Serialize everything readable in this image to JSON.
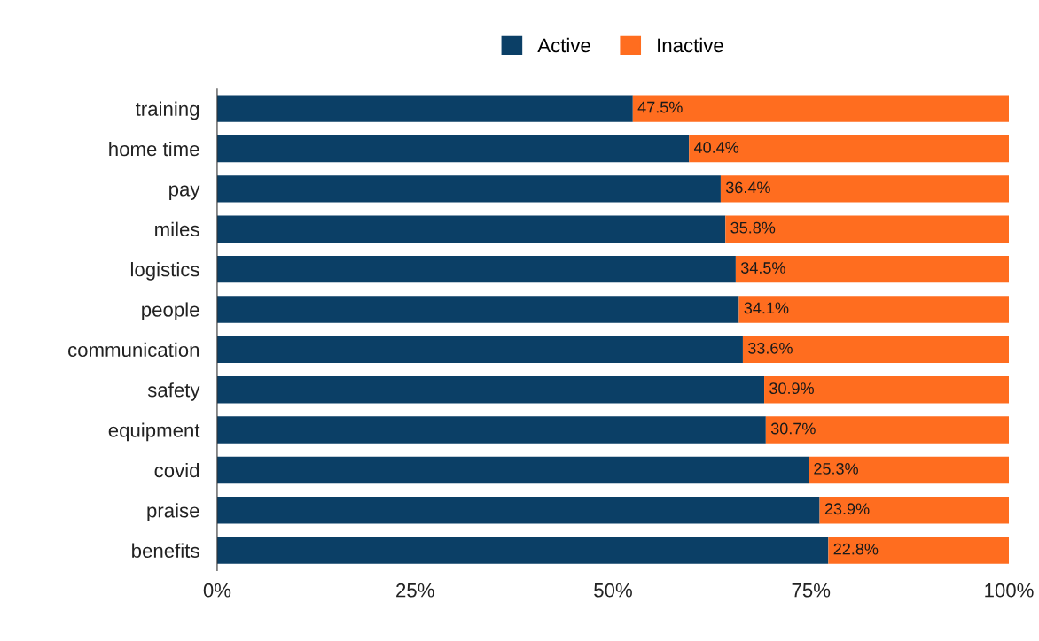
{
  "chart_data": {
    "type": "bar",
    "orientation": "horizontal",
    "stacked": true,
    "relative": false,
    "categories": [
      "training",
      "home time",
      "pay",
      "miles",
      "logistics",
      "people",
      "communication",
      "safety",
      "equipment",
      "covid",
      "praise",
      "benefits"
    ],
    "series": [
      {
        "name": "Active",
        "color": "#0b3f66",
        "values": [
          52.5,
          59.6,
          63.6,
          64.2,
          65.5,
          65.9,
          66.4,
          69.1,
          69.3,
          74.7,
          76.1,
          77.2
        ]
      },
      {
        "name": "Inactive",
        "color": "#ff6d1f",
        "values": [
          47.5,
          40.4,
          36.4,
          35.8,
          34.5,
          34.1,
          33.6,
          30.9,
          30.7,
          25.3,
          23.9,
          22.8
        ],
        "value_labels": [
          "47.5%",
          "40.4%",
          "36.4%",
          "35.8%",
          "34.5%",
          "34.1%",
          "33.6%",
          "30.9%",
          "30.7%",
          "25.3%",
          "23.9%",
          "22.8%"
        ]
      }
    ],
    "xlim": [
      0,
      100
    ],
    "xticks": [
      {
        "value": 0,
        "label": "0%"
      },
      {
        "value": 25,
        "label": "25%"
      },
      {
        "value": 50,
        "label": "50%"
      },
      {
        "value": 75,
        "label": "75%"
      },
      {
        "value": 100,
        "label": "100%"
      }
    ],
    "grid": false,
    "legend": "top"
  }
}
